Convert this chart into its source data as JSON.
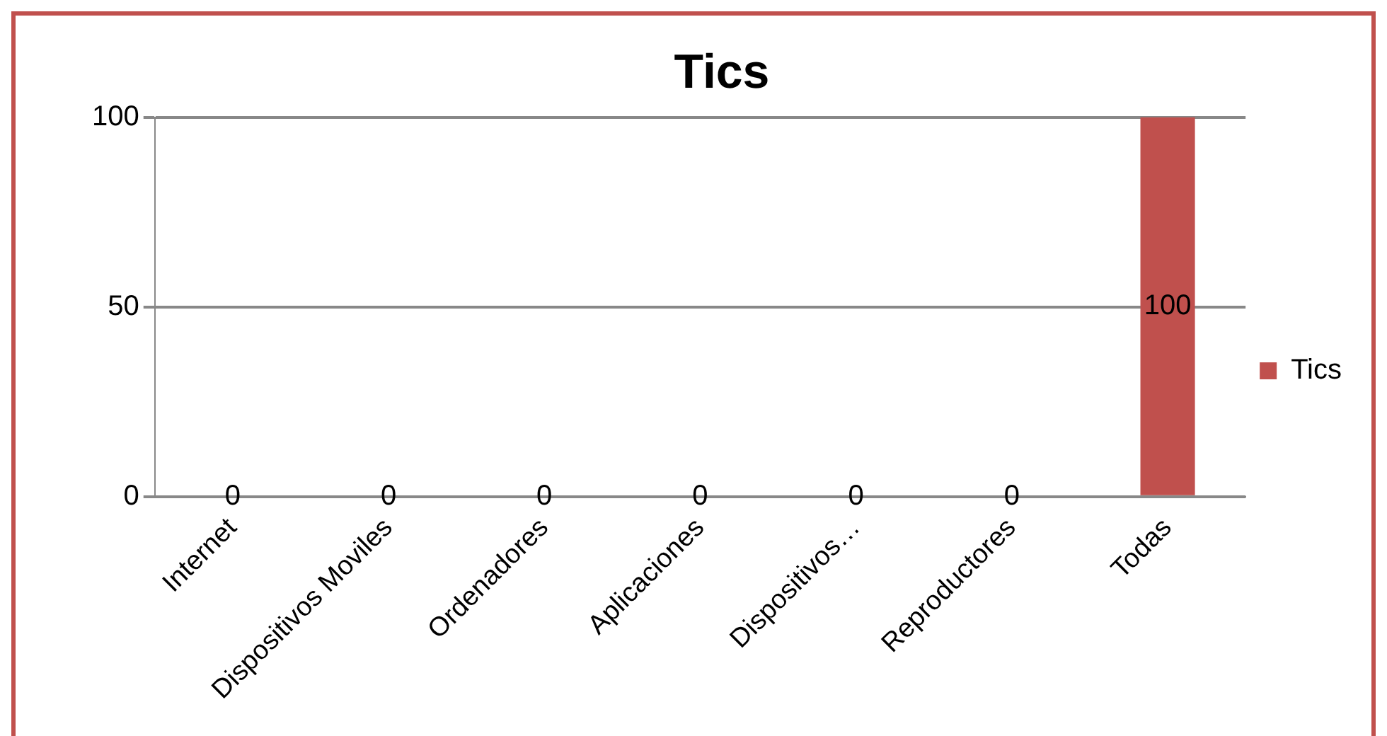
{
  "chart_data": {
    "type": "bar",
    "title": "Tics",
    "categories": [
      "Internet",
      "Dispositivos Moviles",
      "Ordenadores",
      "Aplicaciones",
      "Dispositivos…",
      "Reproductores",
      "Todas"
    ],
    "series": [
      {
        "name": "Tics",
        "color": "#c0504d",
        "values": [
          0,
          0,
          0,
          0,
          0,
          0,
          100
        ]
      }
    ],
    "ylim": [
      0,
      100
    ],
    "yticks": [
      0,
      50,
      100
    ],
    "grid": "y",
    "legend": "right",
    "data_labels": true
  }
}
